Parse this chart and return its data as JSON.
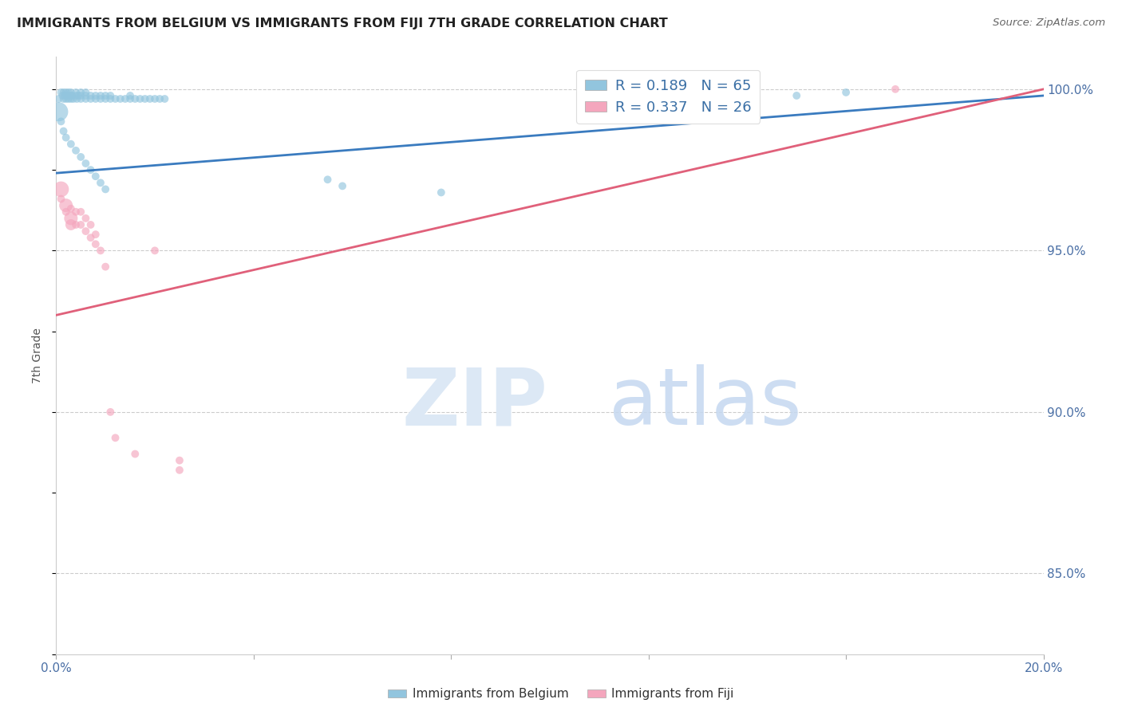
{
  "title": "IMMIGRANTS FROM BELGIUM VS IMMIGRANTS FROM FIJI 7TH GRADE CORRELATION CHART",
  "source": "Source: ZipAtlas.com",
  "ylabel": "7th Grade",
  "ytick_labels": [
    "100.0%",
    "95.0%",
    "90.0%",
    "85.0%"
  ],
  "ytick_values": [
    1.0,
    0.95,
    0.9,
    0.85
  ],
  "legend_blue_r": "R = 0.189",
  "legend_blue_n": "N = 65",
  "legend_pink_r": "R = 0.337",
  "legend_pink_n": "N = 26",
  "blue_color": "#92c5de",
  "pink_color": "#f4a6bd",
  "blue_line_color": "#3a7bbf",
  "pink_line_color": "#e0607a",
  "xlim": [
    0.0,
    0.2
  ],
  "ylim": [
    0.825,
    1.01
  ],
  "blue_trendline_x": [
    0.0,
    0.2
  ],
  "blue_trendline_y": [
    0.974,
    0.998
  ],
  "pink_trendline_x": [
    0.0,
    0.2
  ],
  "pink_trendline_y": [
    0.93,
    1.0
  ],
  "blue_scatter_x": [
    0.0005,
    0.001,
    0.0013,
    0.0015,
    0.0015,
    0.0018,
    0.002,
    0.002,
    0.0022,
    0.0025,
    0.0025,
    0.003,
    0.003,
    0.003,
    0.0032,
    0.0035,
    0.004,
    0.004,
    0.0042,
    0.0045,
    0.005,
    0.005,
    0.005,
    0.006,
    0.006,
    0.006,
    0.007,
    0.007,
    0.008,
    0.008,
    0.009,
    0.009,
    0.01,
    0.01,
    0.011,
    0.011,
    0.012,
    0.013,
    0.014,
    0.015,
    0.015,
    0.016,
    0.017,
    0.018,
    0.019,
    0.02,
    0.021,
    0.022,
    0.0005,
    0.001,
    0.0015,
    0.002,
    0.003,
    0.004,
    0.005,
    0.006,
    0.007,
    0.008,
    0.009,
    0.01,
    0.055,
    0.058,
    0.078,
    0.15,
    0.16
  ],
  "blue_scatter_y": [
    0.997,
    0.999,
    0.998,
    0.997,
    0.999,
    0.998,
    0.997,
    0.999,
    0.998,
    0.997,
    0.999,
    0.997,
    0.998,
    0.999,
    0.998,
    0.997,
    0.998,
    0.999,
    0.997,
    0.998,
    0.997,
    0.998,
    0.999,
    0.997,
    0.998,
    0.999,
    0.997,
    0.998,
    0.997,
    0.998,
    0.997,
    0.998,
    0.997,
    0.998,
    0.997,
    0.998,
    0.997,
    0.997,
    0.997,
    0.997,
    0.998,
    0.997,
    0.997,
    0.997,
    0.997,
    0.997,
    0.997,
    0.997,
    0.993,
    0.99,
    0.987,
    0.985,
    0.983,
    0.981,
    0.979,
    0.977,
    0.975,
    0.973,
    0.971,
    0.969,
    0.972,
    0.97,
    0.968,
    0.998,
    0.999
  ],
  "blue_scatter_size": [
    50,
    50,
    50,
    50,
    50,
    50,
    50,
    50,
    50,
    50,
    50,
    50,
    50,
    50,
    50,
    50,
    50,
    50,
    50,
    50,
    50,
    50,
    50,
    50,
    50,
    50,
    50,
    50,
    50,
    50,
    50,
    50,
    50,
    50,
    50,
    50,
    50,
    50,
    50,
    50,
    50,
    50,
    50,
    50,
    50,
    50,
    50,
    50,
    300,
    50,
    50,
    50,
    50,
    50,
    50,
    50,
    50,
    50,
    50,
    50,
    50,
    50,
    50,
    50,
    50
  ],
  "pink_scatter_x": [
    0.001,
    0.001,
    0.002,
    0.002,
    0.003,
    0.003,
    0.003,
    0.004,
    0.004,
    0.005,
    0.005,
    0.006,
    0.006,
    0.007,
    0.007,
    0.008,
    0.008,
    0.009,
    0.01,
    0.011,
    0.012,
    0.016,
    0.02,
    0.025,
    0.025,
    0.17
  ],
  "pink_scatter_y": [
    0.969,
    0.966,
    0.964,
    0.962,
    0.96,
    0.963,
    0.958,
    0.962,
    0.958,
    0.962,
    0.958,
    0.96,
    0.956,
    0.958,
    0.954,
    0.955,
    0.952,
    0.95,
    0.945,
    0.9,
    0.892,
    0.887,
    0.95,
    0.885,
    0.882,
    1.0
  ],
  "pink_scatter_size": [
    200,
    50,
    150,
    50,
    150,
    50,
    100,
    50,
    50,
    50,
    50,
    50,
    50,
    50,
    50,
    50,
    50,
    50,
    50,
    50,
    50,
    50,
    50,
    50,
    50,
    50
  ]
}
